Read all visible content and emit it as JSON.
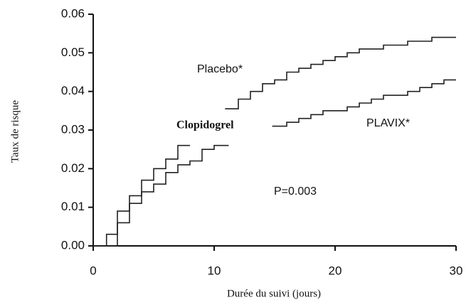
{
  "chart_data": {
    "type": "line",
    "xlabel": "Durée du suivi (jours)",
    "ylabel": "Taux de risque",
    "annotations": [
      "Clopidogrel",
      "P=0.003"
    ],
    "xlim": [
      0,
      30
    ],
    "xticks": [
      0,
      10,
      20,
      30
    ],
    "ylim": [
      0,
      0.06
    ],
    "yticks": [
      {
        "value": 0,
        "label": "0.00"
      },
      0.01,
      0.02,
      0.03,
      0.04,
      0.05,
      0.06
    ],
    "series": [
      {
        "name": "Placebo*",
        "color": "#222222",
        "x": [
          0,
          1.1,
          1.1,
          2,
          2,
          3,
          3,
          4,
          4,
          5,
          5,
          6,
          6,
          7,
          7,
          8,
          null,
          10.9,
          12,
          12,
          13,
          13,
          14,
          14,
          15,
          15,
          16,
          16,
          17,
          17,
          18,
          18,
          19,
          19,
          20,
          20,
          21,
          21,
          22,
          22,
          24,
          24,
          26,
          26,
          28,
          28,
          30
        ],
        "values": [
          0,
          0,
          0.003,
          0.003,
          0.009,
          0.009,
          0.013,
          0.013,
          0.017,
          0.017,
          0.02,
          0.02,
          0.0225,
          0.0225,
          0.026,
          0.026,
          null,
          0.0355,
          0.0355,
          0.038,
          0.038,
          0.04,
          0.04,
          0.042,
          0.042,
          0.043,
          0.043,
          0.045,
          0.045,
          0.046,
          0.046,
          0.047,
          0.047,
          0.048,
          0.048,
          0.049,
          0.049,
          0.05,
          0.05,
          0.051,
          0.051,
          0.052,
          0.052,
          0.053,
          0.053,
          0.054,
          0.054
        ]
      },
      {
        "name": "PLAVIX*",
        "color": "#222222",
        "x": [
          0,
          2,
          2,
          3,
          3,
          4,
          4,
          5,
          5,
          6,
          6,
          7,
          7,
          8,
          8,
          9,
          9,
          10,
          10,
          11.2,
          null,
          14.8,
          16,
          16,
          17,
          17,
          18,
          18,
          19,
          19,
          21,
          21,
          22,
          22,
          23,
          23,
          24,
          24,
          26,
          26,
          27,
          27,
          28,
          28,
          29,
          29,
          30
        ],
        "values": [
          0,
          0,
          0.006,
          0.006,
          0.011,
          0.011,
          0.014,
          0.014,
          0.016,
          0.016,
          0.019,
          0.019,
          0.021,
          0.021,
          0.022,
          0.022,
          0.025,
          0.025,
          0.026,
          0.026,
          null,
          0.031,
          0.031,
          0.032,
          0.032,
          0.033,
          0.033,
          0.034,
          0.034,
          0.035,
          0.035,
          0.036,
          0.036,
          0.037,
          0.037,
          0.038,
          0.038,
          0.039,
          0.039,
          0.04,
          0.04,
          0.041,
          0.041,
          0.042,
          0.042,
          0.043,
          0.043
        ]
      }
    ]
  }
}
